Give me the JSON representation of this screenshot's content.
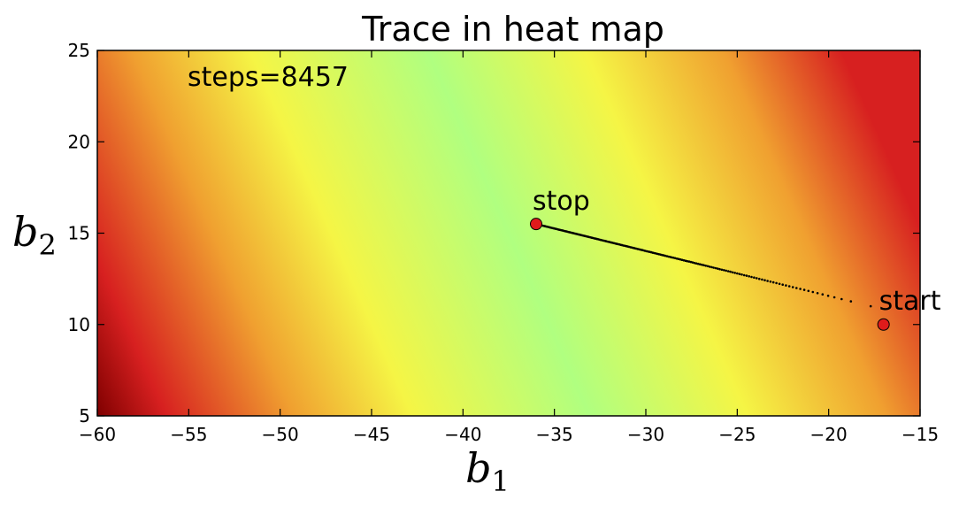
{
  "chart_data": {
    "type": "heatmap",
    "title": "Trace in heat map",
    "xlabel": {
      "base": "b",
      "sub": "1"
    },
    "ylabel": {
      "base": "b",
      "sub": "2"
    },
    "xlim": [
      -60,
      -15
    ],
    "ylim": [
      5,
      25
    ],
    "xticks": [
      -60,
      -55,
      -50,
      -45,
      -40,
      -35,
      -30,
      -25,
      -20,
      -15
    ],
    "xtick_labels": [
      "−60",
      "−55",
      "−50",
      "−45",
      "−40",
      "−35",
      "−30",
      "−25",
      "−20",
      "−15"
    ],
    "yticks": [
      5,
      10,
      15,
      20,
      25
    ],
    "ytick_labels": [
      "5",
      "10",
      "15",
      "20",
      "25"
    ],
    "annotation": "steps=8457",
    "colormap": [
      "#7f0000",
      "#d72020",
      "#f0a030",
      "#f5f545",
      "#b0ff80"
    ],
    "trace": {
      "start": {
        "x": -17,
        "y": 10,
        "label": "start"
      },
      "stop": {
        "x": -36,
        "y": 15.5,
        "label": "stop"
      },
      "path": [
        [
          -17.7,
          11.0
        ],
        [
          -36,
          15.5
        ]
      ]
    },
    "marker_color": "#e01b1b"
  }
}
